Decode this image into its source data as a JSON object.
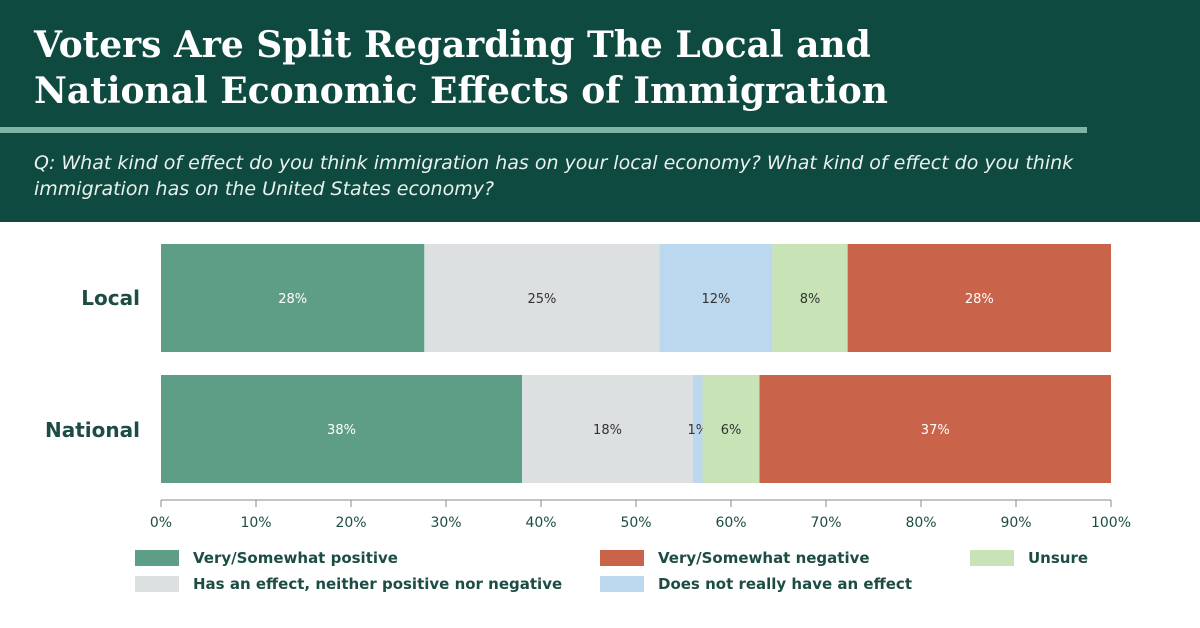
{
  "header": {
    "title": "Voters Are Split Regarding The Local and\nNational Economic Effects of Immigration",
    "question": "Q: What kind of effect do you think immigration has on your local economy? What kind of effect do you think immigration has on the United States economy?"
  },
  "colors": {
    "header_bg": "#0f4a40",
    "positive": "#5f9e86",
    "neither": "#dde0e1",
    "no_effect": "#bcd8ef",
    "unsure": "#c8e3b5",
    "negative": "#c9644b"
  },
  "chart_data": {
    "type": "bar",
    "orientation": "horizontal",
    "stacked": true,
    "categories": [
      "Local",
      "National"
    ],
    "series": [
      {
        "name": "Very/Somewhat positive",
        "values": [
          28,
          38
        ],
        "labels": [
          "28%",
          "38%"
        ]
      },
      {
        "name": "Has an effect, neither positive nor negative",
        "values": [
          25,
          18
        ],
        "labels": [
          "25%",
          "18%"
        ]
      },
      {
        "name": "Does not really have an effect",
        "values": [
          12,
          1
        ],
        "labels": [
          "12%",
          "1%"
        ]
      },
      {
        "name": "Unsure",
        "values": [
          8,
          6
        ],
        "labels": [
          "8%",
          "6%"
        ]
      },
      {
        "name": "Very/Somewhat negative",
        "values": [
          28,
          37
        ],
        "labels": [
          "28%",
          "37%"
        ]
      }
    ],
    "xlim": [
      0,
      100
    ],
    "xticks": [
      "0%",
      "10%",
      "20%",
      "30%",
      "40%",
      "50%",
      "60%",
      "70%",
      "80%",
      "90%",
      "100%"
    ]
  },
  "legend": [
    {
      "label": "Very/Somewhat positive",
      "color": "#5f9e86"
    },
    {
      "label": "Very/Somewhat negative",
      "color": "#c9644b"
    },
    {
      "label": "Unsure",
      "color": "#c8e3b5"
    },
    {
      "label": "Has an effect, neither positive nor negative",
      "color": "#dde0e1"
    },
    {
      "label": "Does not really have an effect",
      "color": "#bcd8ef"
    }
  ]
}
